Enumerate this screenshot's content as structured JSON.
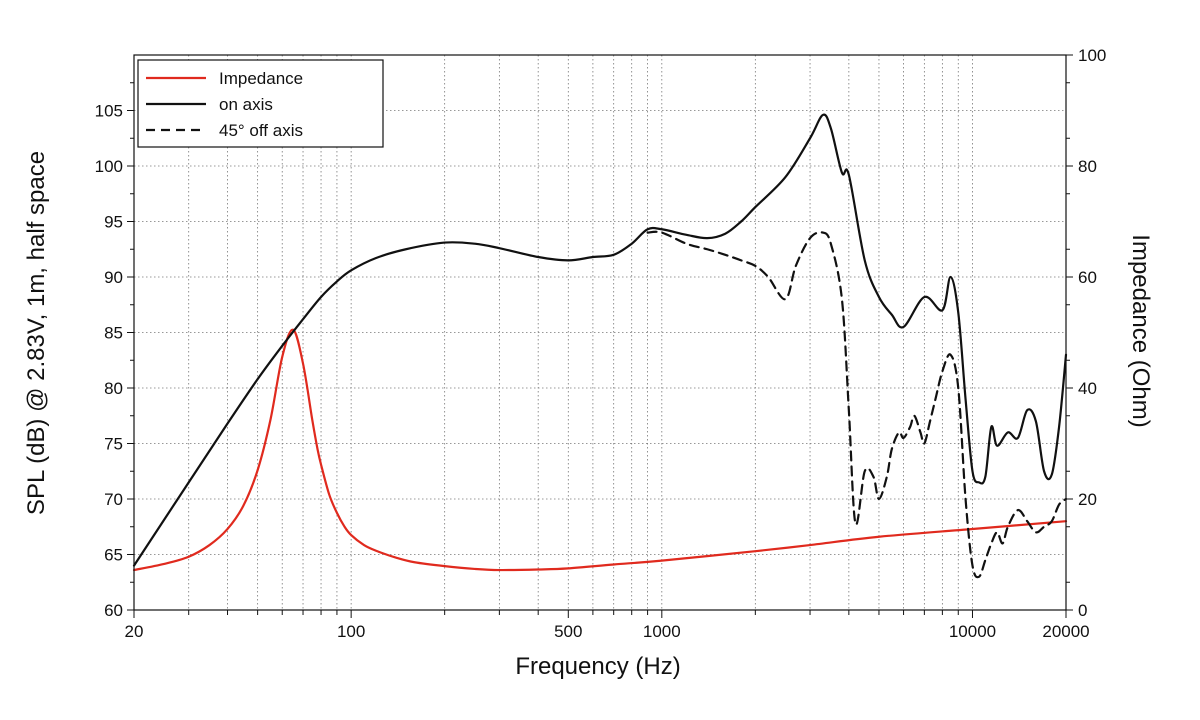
{
  "chart_data": {
    "type": "line",
    "title": "",
    "xlabel": "Frequency (Hz)",
    "ylabel": "SPL (dB) @ 2.83V, 1m, half space",
    "y2label": "Impedance (Ohm)",
    "xscale": "log",
    "xlim": [
      20,
      20000
    ],
    "ylim": [
      60,
      110
    ],
    "y2lim": [
      0,
      100
    ],
    "grid": true,
    "legend_position": "top-left",
    "x_tick_labels": [
      "20",
      "100",
      "500",
      "1000",
      "10000",
      "20000"
    ],
    "x_tick_values": [
      20,
      100,
      500,
      1000,
      10000,
      20000
    ],
    "y_tick_labels": [
      "60",
      "65",
      "70",
      "75",
      "80",
      "85",
      "90",
      "95",
      "100",
      "105"
    ],
    "y_tick_values": [
      60,
      65,
      70,
      75,
      80,
      85,
      90,
      95,
      100,
      105
    ],
    "y2_tick_labels": [
      "0",
      "20",
      "40",
      "60",
      "80",
      "100"
    ],
    "y2_tick_values": [
      0,
      20,
      40,
      60,
      80,
      100
    ],
    "series": [
      {
        "name": "Impedance",
        "axis": "right",
        "color": "#e02a1e",
        "dash": "solid",
        "x": [
          20,
          25,
          30,
          35,
          40,
          45,
          50,
          55,
          60,
          65,
          70,
          75,
          78,
          80,
          85,
          90,
          95,
          100,
          110,
          120,
          140,
          160,
          200,
          250,
          300,
          400,
          500,
          700,
          1000,
          2000,
          3000,
          5000,
          10000,
          20000
        ],
        "values": [
          7.2,
          8.3,
          9.6,
          11.7,
          14.6,
          18.8,
          25.2,
          34.3,
          45.6,
          50.5,
          44.4,
          34.2,
          28.9,
          26.2,
          20.8,
          17.5,
          15.1,
          13.5,
          11.7,
          10.7,
          9.4,
          8.6,
          7.9,
          7.4,
          7.2,
          7.3,
          7.5,
          8.2,
          8.9,
          10.6,
          11.7,
          13.2,
          14.6,
          16.0
        ]
      },
      {
        "name": "on axis",
        "axis": "left",
        "color": "#111111",
        "dash": "solid",
        "x": [
          20,
          30,
          40,
          50,
          60,
          70,
          80,
          90,
          100,
          120,
          150,
          200,
          250,
          300,
          400,
          500,
          600,
          700,
          800,
          900,
          1000,
          1200,
          1400,
          1600,
          1800,
          2000,
          2500,
          3000,
          3300,
          3500,
          3800,
          4000,
          4500,
          5000,
          5500,
          6000,
          7000,
          8000,
          8500,
          9000,
          9500,
          10000,
          10500,
          11000,
          11500,
          12000,
          13000,
          14000,
          15000,
          16000,
          17000,
          18000,
          19000,
          20000
        ],
        "values": [
          64.0,
          71.5,
          76.8,
          80.8,
          83.8,
          86.2,
          88.2,
          89.6,
          90.6,
          91.7,
          92.5,
          93.1,
          93.0,
          92.6,
          91.8,
          91.5,
          91.8,
          92.0,
          93.0,
          94.3,
          94.3,
          93.8,
          93.5,
          93.9,
          95.0,
          96.3,
          99.0,
          102.5,
          104.6,
          103.4,
          99.4,
          99.2,
          91.5,
          88.2,
          86.6,
          85.5,
          88.2,
          87.0,
          90.0,
          86.8,
          79.0,
          72.5,
          71.5,
          72.0,
          76.5,
          74.8,
          76.0,
          75.5,
          78.0,
          77.0,
          72.5,
          72.2,
          76.5,
          83.0
        ]
      },
      {
        "name": "45° off axis",
        "axis": "left",
        "color": "#111111",
        "dash": "dashed",
        "x": [
          900,
          1000,
          1200,
          1400,
          1600,
          1800,
          2000,
          2200,
          2500,
          2700,
          3000,
          3300,
          3500,
          3800,
          4000,
          4200,
          4500,
          4800,
          5000,
          5300,
          5500,
          5800,
          6000,
          6300,
          6500,
          6800,
          7000,
          7300,
          7600,
          8000,
          8500,
          9000,
          9500,
          10000,
          10500,
          11000,
          11500,
          12000,
          12500,
          13000,
          14000,
          15000,
          16000,
          17000,
          18000,
          19000,
          20000
        ],
        "values": [
          94.0,
          94.0,
          93.0,
          92.5,
          92.0,
          91.5,
          91.0,
          90.0,
          88.0,
          91.0,
          93.5,
          94.0,
          93.0,
          88.0,
          78.0,
          67.8,
          72.5,
          72.0,
          70.0,
          72.0,
          74.5,
          76.0,
          75.5,
          76.5,
          77.5,
          76.0,
          75.0,
          77.0,
          79.0,
          81.5,
          83.0,
          80.0,
          70.0,
          64.0,
          63.0,
          64.5,
          66.0,
          67.0,
          66.0,
          67.5,
          69.0,
          68.0,
          67.0,
          67.5,
          68.0,
          69.5,
          70.0
        ]
      }
    ]
  }
}
